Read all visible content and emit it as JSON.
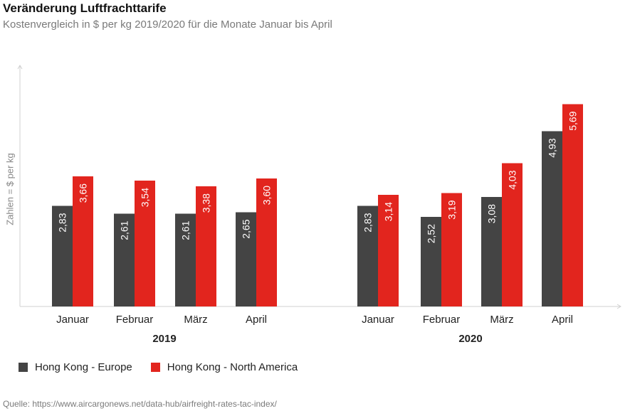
{
  "header": {
    "title": "Veränderung Luftfrachttarife",
    "subtitle": "Kostenvergleich in $ per kg 2019/2020 für die Monate Januar bis April"
  },
  "source": "Quelle: https://www.aircargonews.net/data-hub/airfreight-rates-tac-index/",
  "colors": {
    "europe": "#444444",
    "north_america": "#e2251e",
    "axis": "#d0d0d0"
  },
  "chart_data": {
    "type": "bar",
    "title": "Veränderung Luftfrachttarife",
    "subtitle": "Kostenvergleich in $ per kg 2019/2020 für die Monate Januar bis April",
    "ylabel": "Zahlen = $ per kg",
    "ylim": [
      0,
      6
    ],
    "grid": false,
    "legend_position": "bottom-left",
    "groups": [
      {
        "label": "2019",
        "categories": [
          "Januar",
          "Februar",
          "März",
          "April"
        ],
        "series": [
          {
            "name": "Hong Kong - Europe",
            "values": [
              2.83,
              2.61,
              2.61,
              2.65
            ],
            "labels": [
              "2,83",
              "2,61",
              "2,61",
              "2,65"
            ]
          },
          {
            "name": "Hong Kong - North America",
            "values": [
              3.66,
              3.54,
              3.38,
              3.6
            ],
            "labels": [
              "3,66",
              "3,54",
              "3,38",
              "3,60"
            ]
          }
        ]
      },
      {
        "label": "2020",
        "categories": [
          "Januar",
          "Februar",
          "März",
          "April"
        ],
        "series": [
          {
            "name": "Hong Kong - Europe",
            "values": [
              2.83,
              2.52,
              3.08,
              4.93
            ],
            "labels": [
              "2,83",
              "2,52",
              "3,08",
              "4,93"
            ]
          },
          {
            "name": "Hong Kong - North America",
            "values": [
              3.14,
              3.19,
              4.03,
              5.69
            ],
            "labels": [
              "3,14",
              "3,19",
              "4,03",
              "5,69"
            ]
          }
        ]
      }
    ]
  }
}
